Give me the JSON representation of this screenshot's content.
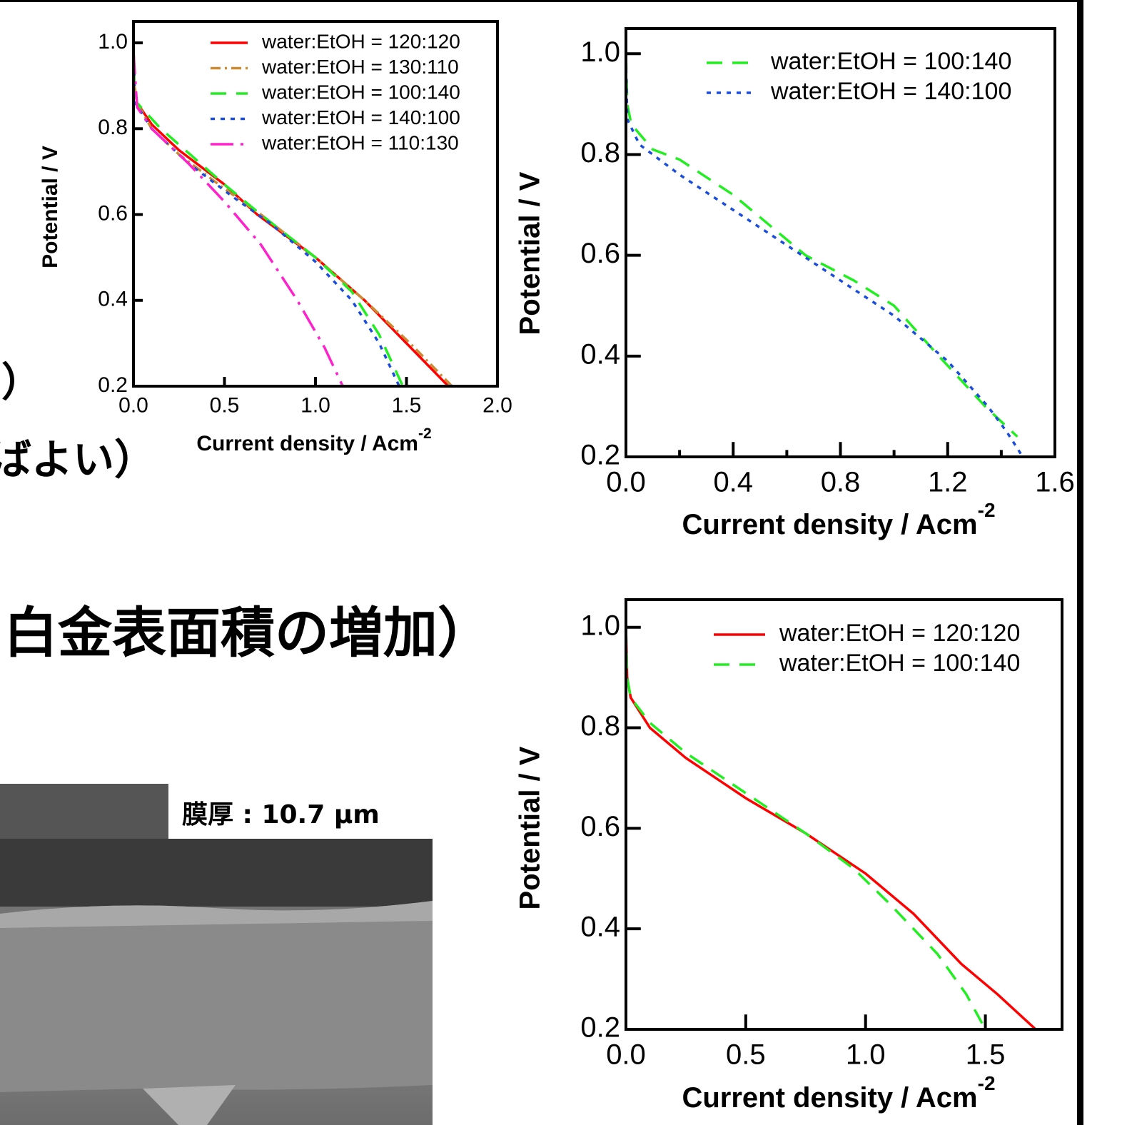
{
  "page_text": {
    "fragment_1": "）",
    "fragment_2": "ばよい）",
    "heading": "白金表面積の増加）",
    "image_label": "膜厚 : 10.7 μm"
  },
  "chart_data": [
    {
      "type": "line",
      "xlabel": "Current density / Acm",
      "xlabel_superscript": "-2",
      "ylabel": "Potential / V",
      "xlim": [
        0,
        2
      ],
      "ylim": [
        0.2,
        1.05
      ],
      "xticks": [
        {
          "value": 0,
          "label": "0.0"
        },
        0.5,
        {
          "value": 1,
          "label": "1.0"
        },
        1.5,
        {
          "value": 2,
          "label": "2.0"
        }
      ],
      "yticks": [
        0.2,
        0.4,
        0.6,
        0.8,
        {
          "value": 1,
          "label": "1.0"
        }
      ],
      "legend": "upper right",
      "series": [
        {
          "name": "water:EtOH = 120:120",
          "color": "#ff0000",
          "dash": "solid",
          "x": [
            0,
            0.005,
            0.02,
            0.1,
            0.25,
            0.5,
            0.68,
            1.0,
            1.27,
            1.5,
            1.73
          ],
          "values": [
            1.0,
            0.9,
            0.86,
            0.81,
            0.75,
            0.67,
            0.6,
            0.5,
            0.4,
            0.3,
            0.2
          ]
        },
        {
          "name": "water:EtOH = 130:110",
          "color": "#cc8a33",
          "dash": "dashdot",
          "x": [
            0,
            0.005,
            0.02,
            0.1,
            0.25,
            0.5,
            0.7,
            1.0,
            1.27,
            1.52,
            1.75
          ],
          "values": [
            1.0,
            0.9,
            0.86,
            0.8,
            0.74,
            0.66,
            0.6,
            0.5,
            0.4,
            0.3,
            0.2
          ]
        },
        {
          "name": "water:EtOH = 100:140",
          "color": "#22ee22",
          "dash": "dashed",
          "x": [
            0,
            0.005,
            0.02,
            0.15,
            0.5,
            0.7,
            1.0,
            1.2,
            1.35,
            1.48
          ],
          "values": [
            1.0,
            0.9,
            0.86,
            0.8,
            0.67,
            0.6,
            0.5,
            0.42,
            0.32,
            0.2
          ]
        },
        {
          "name": "water:EtOH = 140:100",
          "color": "#1b4ddd",
          "dash": "dotted",
          "x": [
            0,
            0.01,
            0.1,
            0.3,
            0.55,
            0.75,
            1.0,
            1.2,
            1.35,
            1.46
          ],
          "values": [
            0.98,
            0.86,
            0.8,
            0.72,
            0.64,
            0.58,
            0.49,
            0.4,
            0.3,
            0.2
          ]
        },
        {
          "name": "water:EtOH = 110:130",
          "color": "#ff22cc",
          "dash": "longdashdot",
          "x": [
            0,
            0.02,
            0.1,
            0.3,
            0.5,
            0.7,
            0.9,
            1.05,
            1.15
          ],
          "values": [
            0.98,
            0.85,
            0.8,
            0.72,
            0.63,
            0.53,
            0.4,
            0.29,
            0.2
          ]
        }
      ]
    },
    {
      "type": "line",
      "xlabel": "Current density / Acm",
      "xlabel_superscript": "-2",
      "ylabel": "Potential / V",
      "xlim": [
        0,
        1.6
      ],
      "ylim": [
        0.2,
        1.05
      ],
      "xticks": [
        {
          "value": 0,
          "label": "0.0"
        },
        0.4,
        0.8,
        1.2,
        1.6
      ],
      "xminorticks": [
        0.2,
        0.6,
        1.0,
        1.4
      ],
      "yticks": [
        0.2,
        0.4,
        0.6,
        0.8,
        {
          "value": 1,
          "label": "1.0"
        }
      ],
      "legend": "upper right",
      "series": [
        {
          "name": "water:EtOH = 100:140",
          "color": "#22ee22",
          "dash": "dashed",
          "x": [
            0,
            0.005,
            0.02,
            0.1,
            0.2,
            0.4,
            0.67,
            0.85,
            1.0,
            1.15,
            1.34,
            1.46
          ],
          "values": [
            1.0,
            0.9,
            0.86,
            0.81,
            0.79,
            0.72,
            0.6,
            0.55,
            0.5,
            0.41,
            0.3,
            0.24
          ]
        },
        {
          "name": "water:EtOH = 140:100",
          "color": "#1b4ddd",
          "dash": "dotted",
          "x": [
            0,
            0.005,
            0.05,
            0.2,
            0.4,
            0.6,
            0.8,
            1.0,
            1.2,
            1.35,
            1.42,
            1.48
          ],
          "values": [
            0.99,
            0.87,
            0.82,
            0.76,
            0.69,
            0.62,
            0.55,
            0.48,
            0.39,
            0.3,
            0.25,
            0.2
          ]
        }
      ]
    },
    {
      "type": "line",
      "xlabel": "Current density / Acm",
      "xlabel_superscript": "-2",
      "ylabel": "Potential / V",
      "xlim": [
        0,
        1.82
      ],
      "ylim": [
        0.2,
        1.055
      ],
      "xticks": [
        {
          "value": 0,
          "label": "0.0"
        },
        0.5,
        {
          "value": 1,
          "label": "1.0"
        },
        1.5
      ],
      "yticks": [
        0.2,
        0.4,
        0.6,
        0.8,
        {
          "value": 1,
          "label": "1.0"
        }
      ],
      "legend": "upper right",
      "series": [
        {
          "name": "water:EtOH = 120:120",
          "color": "#ff0000",
          "dash": "solid",
          "x": [
            0,
            0.005,
            0.02,
            0.1,
            0.25,
            0.5,
            0.75,
            1.0,
            1.2,
            1.4,
            1.55,
            1.71
          ],
          "values": [
            1.0,
            0.9,
            0.86,
            0.8,
            0.74,
            0.66,
            0.59,
            0.51,
            0.43,
            0.33,
            0.27,
            0.2
          ]
        },
        {
          "name": "water:EtOH = 100:140",
          "color": "#22ee22",
          "dash": "dashed",
          "x": [
            0,
            0.005,
            0.02,
            0.1,
            0.25,
            0.5,
            0.75,
            0.95,
            1.1,
            1.3,
            1.42,
            1.5
          ],
          "values": [
            1.0,
            0.9,
            0.86,
            0.81,
            0.75,
            0.67,
            0.59,
            0.52,
            0.45,
            0.35,
            0.27,
            0.2
          ]
        }
      ]
    }
  ]
}
